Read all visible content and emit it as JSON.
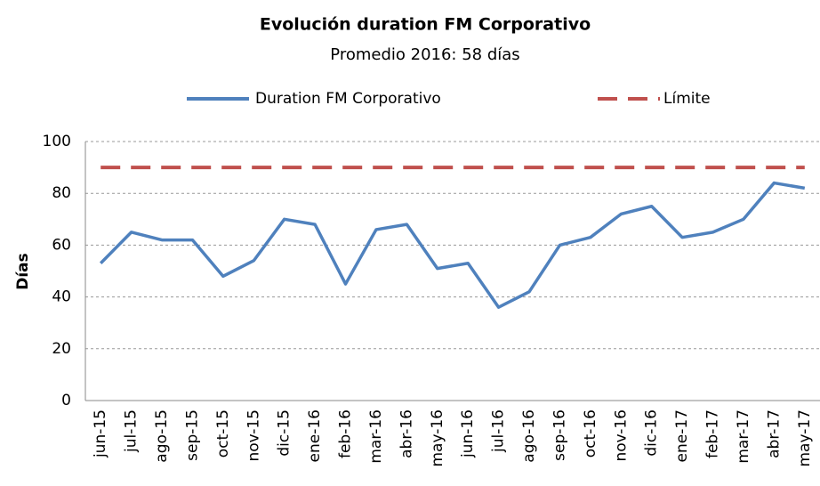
{
  "chart_data": {
    "type": "line",
    "title": "Evolución duration FM Corporativo",
    "subtitle": "Promedio 2016: 58 días",
    "y_label": "Días",
    "categories": [
      "jun-15",
      "jul-15",
      "ago-15",
      "sep-15",
      "oct-15",
      "nov-15",
      "dic-15",
      "ene-16",
      "feb-16",
      "mar-16",
      "abr-16",
      "may-16",
      "jun-16",
      "jul-16",
      "ago-16",
      "sep-16",
      "oct-16",
      "nov-16",
      "dic-16",
      "ene-17",
      "feb-17",
      "mar-17",
      "abr-17",
      "may-17"
    ],
    "series": [
      {
        "name": "Duration FM Corporativo",
        "color": "#4f81bd",
        "values": [
          53,
          65,
          62,
          62,
          48,
          54,
          70,
          68,
          45,
          66,
          68,
          51,
          53,
          36,
          42,
          60,
          63,
          72,
          75,
          63,
          65,
          70,
          84,
          82
        ]
      },
      {
        "name": "Límite",
        "color": "#c0504d",
        "dashed": true,
        "values": [
          90,
          90,
          90,
          90,
          90,
          90,
          90,
          90,
          90,
          90,
          90,
          90,
          90,
          90,
          90,
          90,
          90,
          90,
          90,
          90,
          90,
          90,
          90,
          90
        ]
      }
    ],
    "ylim": [
      0,
      100
    ],
    "yticks": [
      0,
      20,
      40,
      60,
      80,
      100
    ],
    "grid": true,
    "legend": "top"
  }
}
